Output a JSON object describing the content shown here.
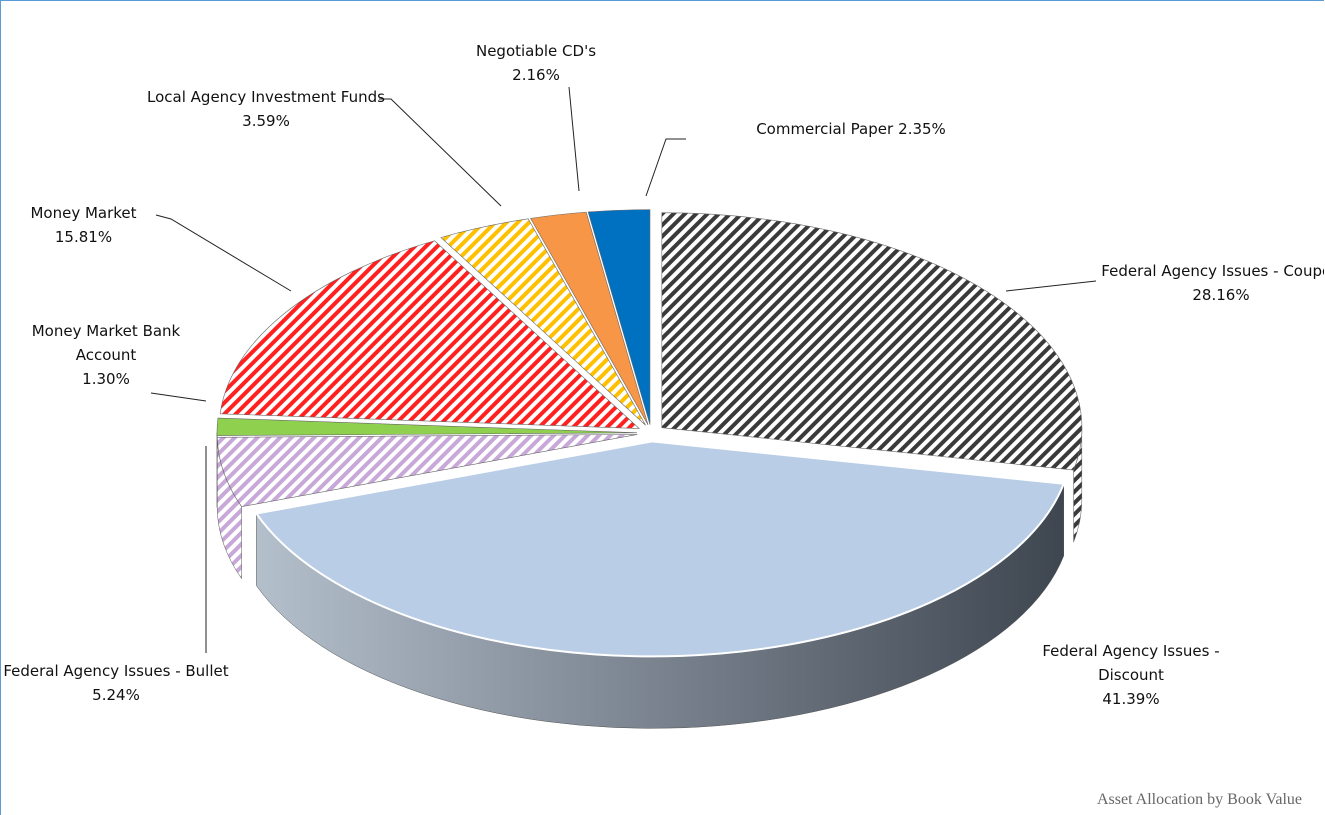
{
  "chart_data": {
    "type": "pie",
    "caption": "Asset Allocation by Book Value",
    "categories": [
      "Federal Agency Issues - Coupon",
      "Federal Agency Issues - Discount",
      "Federal Agency Issues - Bullet",
      "Money Market Bank Account",
      "Money Market",
      "Local Agency Investment Funds",
      "Negotiable CD's",
      "Commercial Paper"
    ],
    "values": [
      28.16,
      41.39,
      5.24,
      1.3,
      15.81,
      3.59,
      2.16,
      2.35
    ],
    "value_labels": [
      "28.16%",
      "41.39%",
      "5.24%",
      "1.30%",
      "15.81%",
      "3.59%",
      "2.16%",
      "2.35%"
    ],
    "colors": [
      "#3a3a3a",
      "#b9cde6",
      "#c8a8d8",
      "#8fd14f",
      "#ff2020",
      "#ffc000",
      "#f79646",
      "#0070c0"
    ],
    "hatched": [
      true,
      false,
      true,
      false,
      true,
      true,
      false,
      false
    ]
  }
}
